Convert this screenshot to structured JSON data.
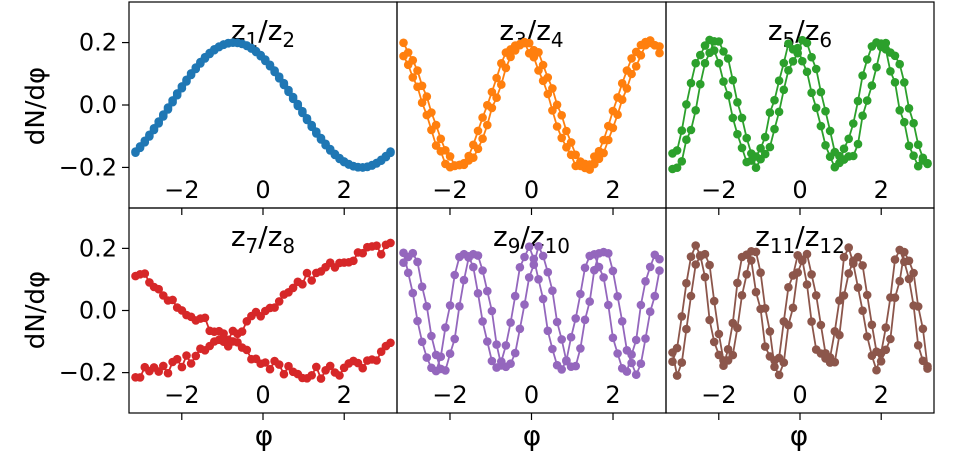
{
  "figure": {
    "ylabel": "dN/dφ",
    "xlabel": "φ"
  },
  "chart_data": [
    {
      "type": "line",
      "title": {
        "a": "z",
        "as": "1",
        "sep": "/",
        "b": "z",
        "bs": "2"
      },
      "color": "#1f77b4",
      "n_modes": 1,
      "amp": 0.2,
      "noise": 0.0,
      "phase_a": 2.3,
      "phase_b": 0.7,
      "xlim": [
        -3.3,
        3.3
      ],
      "ylim": [
        -0.33,
        0.33
      ],
      "xticks": [
        -2,
        0,
        2
      ],
      "yticks": [
        -0.2,
        0.0,
        0.2
      ],
      "xticklabels": [
        "−2",
        "0",
        "2"
      ],
      "yticklabels": [
        "−0.2",
        "0.0",
        "0.2"
      ]
    },
    {
      "type": "line",
      "title": {
        "a": "z",
        "as": "3",
        "sep": "/",
        "b": "z",
        "bs": "4"
      },
      "color": "#ff7f0e",
      "n_modes": 2,
      "amp": 0.2,
      "noise": 0.01,
      "phase_a": 2.2,
      "phase_b": 0.3,
      "xlim": [
        -3.3,
        3.3
      ],
      "ylim": [
        -0.33,
        0.33
      ],
      "xticks": [
        -2,
        0,
        2
      ],
      "xticklabels": [
        "−2",
        "0",
        "2"
      ]
    },
    {
      "type": "line",
      "title": {
        "a": "z",
        "as": "5",
        "sep": "/",
        "b": "z",
        "bs": "6"
      },
      "color": "#2ca02c",
      "n_modes": 3,
      "amp": 0.19,
      "noise": 0.02,
      "phase_a": 1.4,
      "phase_b": 0.5,
      "xlim": [
        -3.3,
        3.3
      ],
      "ylim": [
        -0.33,
        0.33
      ],
      "xticks": [
        -2,
        0,
        2
      ],
      "xticklabels": [
        "−2",
        "0",
        "2"
      ]
    },
    {
      "type": "line",
      "title": {
        "a": "z",
        "as": "7",
        "sep": "/",
        "b": "z",
        "bs": "8"
      },
      "color": "#d62728",
      "n_modes": 0.5,
      "amp": 0.2,
      "noise": 0.02,
      "phase_a": 0.0,
      "phase_b": 2.5,
      "xlim": [
        -3.3,
        3.3
      ],
      "ylim": [
        -0.33,
        0.33
      ],
      "xticks": [
        -2,
        0,
        2
      ],
      "yticks": [
        -0.2,
        0.0,
        0.2
      ],
      "xticklabels": [
        "−2",
        "0",
        "2"
      ],
      "yticklabels": [
        "−0.2",
        "0.0",
        "0.2"
      ]
    },
    {
      "type": "line",
      "title": {
        "a": "z",
        "as": "9",
        "sep": "/",
        "b": "z",
        "bs": "10"
      },
      "color": "#9467bd",
      "n_modes": 4,
      "amp": 0.19,
      "noise": 0.02,
      "phase_a": 0.8,
      "phase_b": 0.3,
      "xlim": [
        -3.3,
        3.3
      ],
      "ylim": [
        -0.33,
        0.33
      ],
      "xticks": [
        -2,
        0,
        2
      ],
      "xticklabels": [
        "−2",
        "0",
        "2"
      ]
    },
    {
      "type": "line",
      "title": {
        "a": "z",
        "as": "11",
        "sep": "/",
        "b": "z",
        "bs": "12"
      },
      "color": "#8c564b",
      "n_modes": 5,
      "amp": 0.18,
      "noise": 0.03,
      "phase_a": 1.0,
      "phase_b": 0.2,
      "xlim": [
        -3.3,
        3.3
      ],
      "ylim": [
        -0.33,
        0.33
      ],
      "xticks": [
        -2,
        0,
        2
      ],
      "xticklabels": [
        "−2",
        "0",
        "2"
      ]
    }
  ]
}
